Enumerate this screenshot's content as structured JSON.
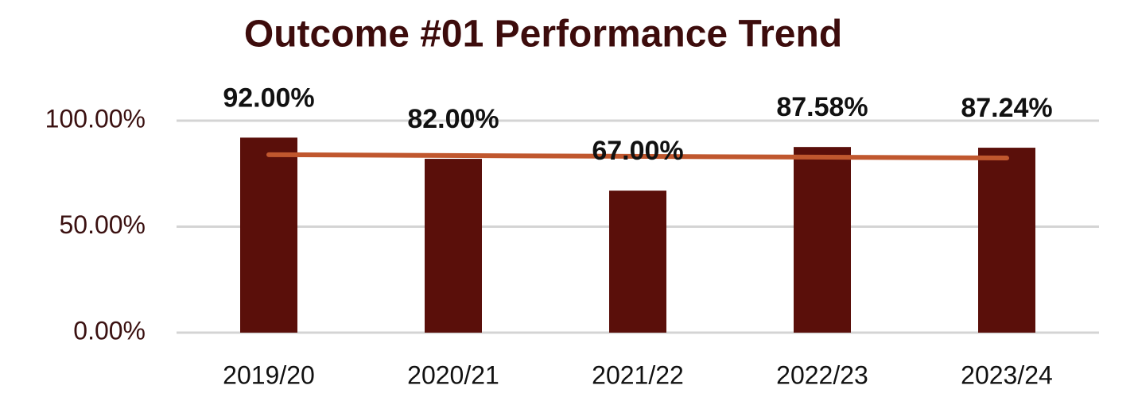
{
  "chart_data": {
    "type": "bar",
    "title": "Outcome #01 Performance Trend",
    "categories": [
      "2019/20",
      "2020/21",
      "2021/22",
      "2022/23",
      "2023/24"
    ],
    "values": [
      92,
      82,
      67,
      87.58,
      87.24
    ],
    "value_labels": [
      "92.00%",
      "82.00%",
      "67.00%",
      "87.58%",
      "87.24%"
    ],
    "color": "#5a0f0a",
    "ylim": [
      0,
      100
    ],
    "yticks": [
      {
        "value": 0,
        "label": "0.00%"
      },
      {
        "value": 50,
        "label": "50.00%"
      },
      {
        "value": 100,
        "label": "100.00%"
      }
    ],
    "grid": true,
    "trendline": "linear",
    "trendline_color": "#c0572e"
  }
}
